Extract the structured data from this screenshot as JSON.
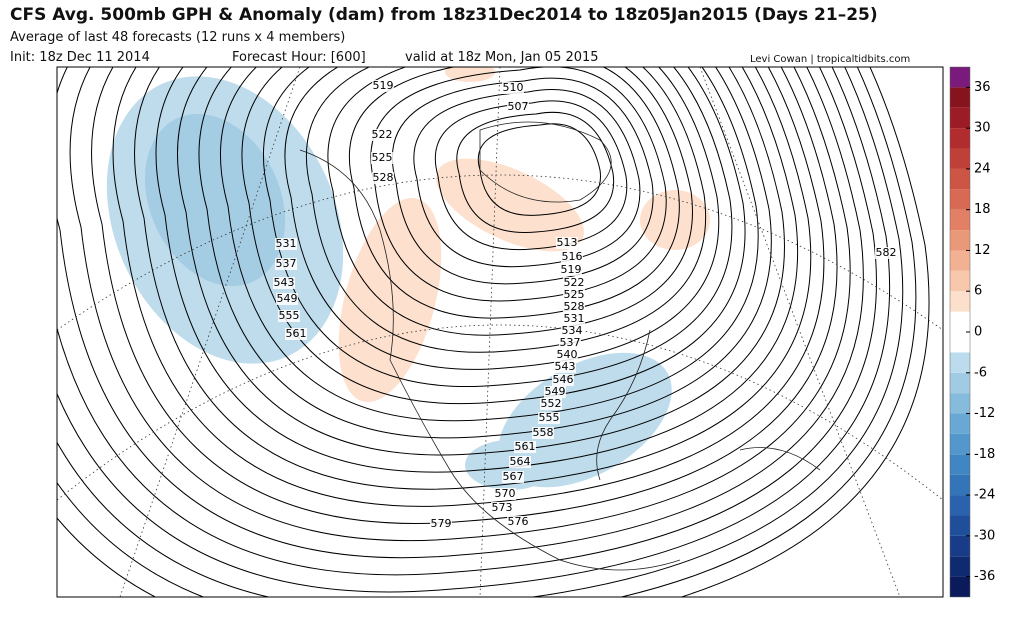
{
  "header": {
    "title": "CFS Avg. 500mb GPH & Anomaly (dam) from 18z31Dec2014 to 18z05Jan2015 (Days 21–25)",
    "subtitle": "Average of last 48 forecasts (12 runs x 4 members)",
    "init": "Init: 18z Dec 11 2014",
    "forecast_hour": "Forecast Hour: [600]",
    "valid": "valid at 18z Mon, Jan 05 2015",
    "credit": "Levi Cowan | tropicaltidbits.com"
  },
  "contour_labels": [
    519,
    510,
    507,
    522,
    525,
    528,
    531,
    537,
    543,
    549,
    555,
    561,
    513,
    516,
    519,
    522,
    525,
    528,
    531,
    534,
    537,
    540,
    543,
    546,
    549,
    552,
    555,
    558,
    561,
    564,
    567,
    570,
    573,
    576,
    579,
    582
  ],
  "colorbar": {
    "lim": [
      -39,
      39
    ],
    "ticks": [
      36,
      30,
      24,
      18,
      12,
      6,
      0,
      -6,
      -12,
      -18,
      -24,
      -30,
      -36
    ],
    "levels": [
      -39,
      -36,
      -33,
      -30,
      -27,
      -24,
      -21,
      -18,
      -15,
      -12,
      -9,
      -6,
      -3,
      0,
      3,
      6,
      9,
      12,
      15,
      18,
      21,
      24,
      27,
      30,
      33,
      36,
      39
    ],
    "colors": [
      "#0a1a5a",
      "#102a70",
      "#183c88",
      "#1f4f9a",
      "#2a62ad",
      "#3474b8",
      "#3f86c2",
      "#5497cb",
      "#6aa8d4",
      "#86bbdc",
      "#a0cbe3",
      "#bcdbec",
      "#ffffff",
      "#ffffff",
      "#fde0cc",
      "#f8c8ac",
      "#f2b192",
      "#ea987a",
      "#e28066",
      "#d86a55",
      "#cc5546",
      "#bf4039",
      "#b02c2f",
      "#9c1c26",
      "#86141e",
      "#7a1a7a"
    ]
  }
}
